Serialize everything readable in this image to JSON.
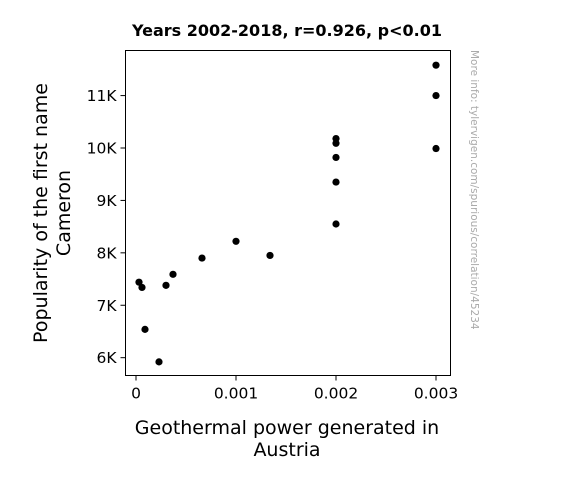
{
  "chart_data": {
    "type": "scatter",
    "title": "Years 2002-2018, r=0.926, p<0.01",
    "xlabel": [
      "Geothermal power generated in",
      "Austria"
    ],
    "ylabel": [
      "Popularity of the first name",
      "Cameron"
    ],
    "xlim": [
      -0.000105,
      0.003145
    ],
    "ylim": [
      5660,
      11860
    ],
    "xticks": [
      {
        "value": 0,
        "label": "0"
      },
      {
        "value": 0.001,
        "label": "0.001"
      },
      {
        "value": 0.002,
        "label": "0.002"
      },
      {
        "value": 0.003,
        "label": "0.003"
      }
    ],
    "yticks": [
      {
        "value": 6000,
        "label": "6K"
      },
      {
        "value": 7000,
        "label": "7K"
      },
      {
        "value": 8000,
        "label": "8K"
      },
      {
        "value": 9000,
        "label": "9K"
      },
      {
        "value": 10000,
        "label": "10K"
      },
      {
        "value": 11000,
        "label": "11K"
      }
    ],
    "points": [
      {
        "x": 3e-05,
        "y": 7440
      },
      {
        "x": 6e-05,
        "y": 7340
      },
      {
        "x": 9e-05,
        "y": 6540
      },
      {
        "x": 0.00023,
        "y": 5920
      },
      {
        "x": 0.0003,
        "y": 7380
      },
      {
        "x": 0.00037,
        "y": 7590
      },
      {
        "x": 0.00066,
        "y": 7900
      },
      {
        "x": 0.001,
        "y": 8220
      },
      {
        "x": 0.00134,
        "y": 7950
      },
      {
        "x": 0.002,
        "y": 8550
      },
      {
        "x": 0.002,
        "y": 9350
      },
      {
        "x": 0.002,
        "y": 9820
      },
      {
        "x": 0.002,
        "y": 10090
      },
      {
        "x": 0.002,
        "y": 10180
      },
      {
        "x": 0.003,
        "y": 9990
      },
      {
        "x": 0.003,
        "y": 11000
      },
      {
        "x": 0.003,
        "y": 11580
      }
    ],
    "marker_color": "#000000",
    "grid": false,
    "watermark": "More info: tylervigen.com/spurious/correlation/45234"
  }
}
